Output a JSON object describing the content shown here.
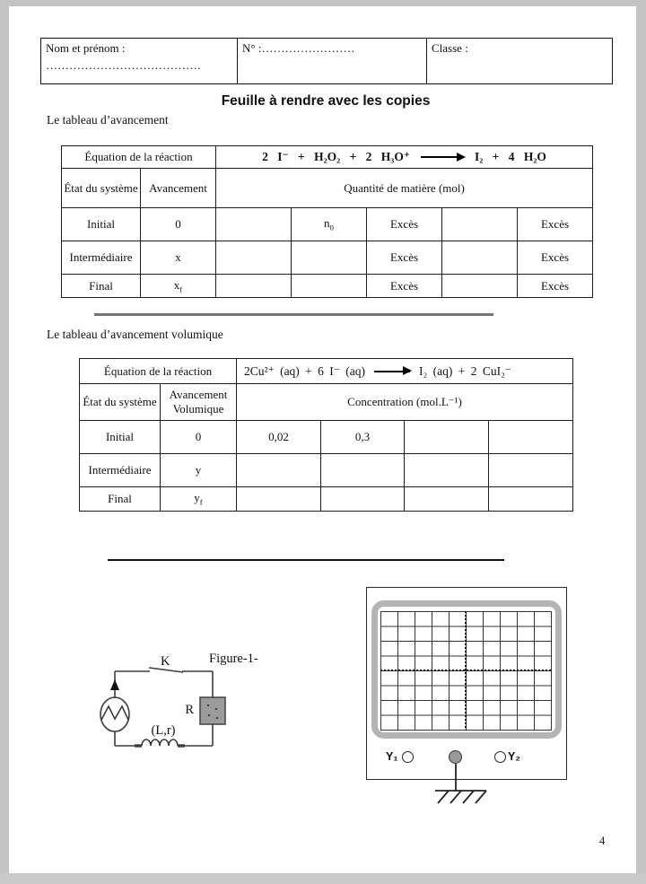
{
  "colors": {
    "page_frame": "#c3c3c3",
    "resistor_fill": "#9b9b9b",
    "scope_bezel": "#b4b4b4",
    "ground_connector_fill": "#999999"
  },
  "header_box": {
    "name_label": "Nom et prénom :",
    "name_dots": "………………………………….",
    "number_label": "N° :……………………",
    "class_label": "Classe :"
  },
  "title": "Feuille à rendre avec les copies",
  "sections": {
    "table1_label": "Le tableau d’avancement",
    "table2_label": "Le tableau d’avancement volumique"
  },
  "table1": {
    "equation_label": "Équation de la réaction",
    "equation_lhs": "2 I⁻ + H₂O₂ + 2 H₃O⁺",
    "equation_rhs": "I₂ + 4 H₂O",
    "state_header": "État du système",
    "avancement_header": "Avancement",
    "quantity_header": "Quantité de matière (mol)",
    "rows": [
      {
        "state": "Initial",
        "avancement": "0",
        "c1": "",
        "c2": "n~0~",
        "c3": "Excès",
        "c4": "",
        "c5": "Excès"
      },
      {
        "state": "Intermédiaire",
        "avancement": "x",
        "c1": "",
        "c2": "",
        "c3": "Excès",
        "c4": "",
        "c5": "Excès"
      },
      {
        "state": "Final",
        "avancement": "x~f~",
        "c1": "",
        "c2": "",
        "c3": "Excès",
        "c4": "",
        "c5": "Excès"
      }
    ]
  },
  "table2": {
    "equation_label": "Équation de la réaction",
    "equation_lhs": "2Cu²⁺ (aq) + 6 I⁻ (aq)",
    "equation_rhs": "I₂ (aq) + 2 CuI₂⁻",
    "state_header": "État du système",
    "avancement_header": "Avancement Volumique",
    "concentration_header": "Concentration (mol.L⁻¹)",
    "rows": [
      {
        "state": "Initial",
        "avancement": "0",
        "c1": "0,02",
        "c2": "0,3",
        "c3": "",
        "c4": ""
      },
      {
        "state": "Intermédiaire",
        "avancement": "y",
        "c1": "",
        "c2": "",
        "c3": "",
        "c4": ""
      },
      {
        "state": "Final",
        "avancement": "y~f~",
        "c1": "",
        "c2": "",
        "c3": "",
        "c4": ""
      }
    ]
  },
  "figure": {
    "caption": "Figure-1-",
    "switch_label": "K",
    "resistor_label": "R",
    "inductor_label": "(L,r)"
  },
  "oscilloscope": {
    "y1_label": "Y₁",
    "y2_label": "Y₂"
  },
  "page_number": "4"
}
